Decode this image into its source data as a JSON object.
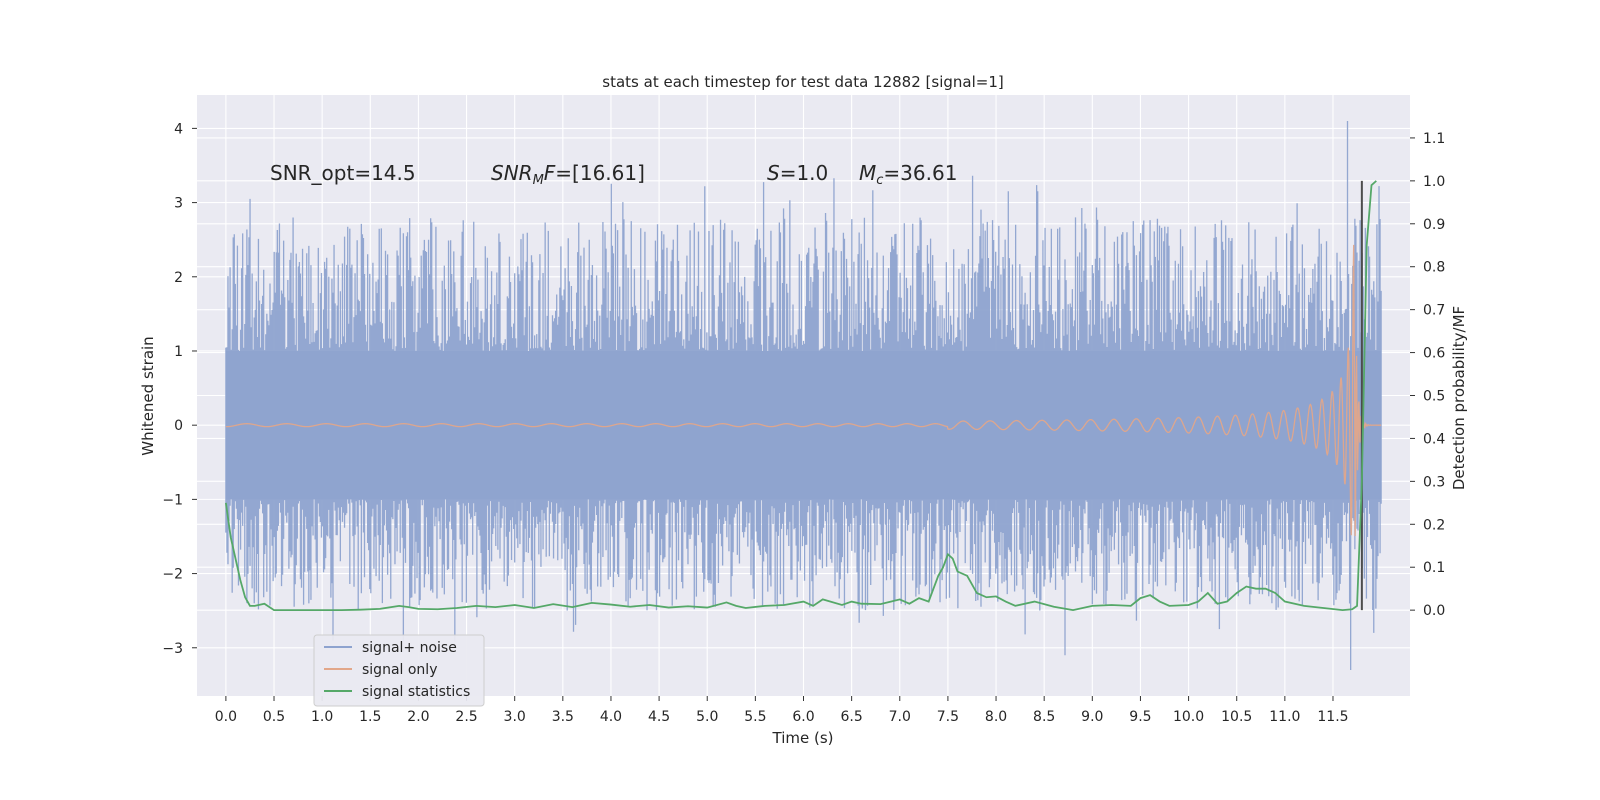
{
  "chart_data": {
    "type": "line",
    "title": "stats at each timestep for test data 12882 [signal=1]",
    "xlabel": "Time (s)",
    "ylabel_left": "Whitened strain",
    "ylabel_right": "Detection probability/MF",
    "x_ticks": [
      "0.0",
      "0.5",
      "1.0",
      "1.5",
      "2.0",
      "2.5",
      "3.0",
      "3.5",
      "4.0",
      "4.5",
      "5.0",
      "5.5",
      "6.0",
      "6.5",
      "7.0",
      "7.5",
      "8.0",
      "8.5",
      "9.0",
      "9.5",
      "10.0",
      "10.5",
      "11.0",
      "11.5"
    ],
    "y_left_ticks": [
      "4",
      "3",
      "2",
      "1",
      "0",
      "−1",
      "−2",
      "−3"
    ],
    "y_right_ticks": [
      "1.1",
      "1.0",
      "0.9",
      "0.8",
      "0.7",
      "0.6",
      "0.5",
      "0.4",
      "0.3",
      "0.2",
      "0.1",
      "0.0"
    ],
    "xlim": [
      -0.3,
      12.3
    ],
    "ylim_left": [
      -3.65,
      4.45
    ],
    "ylim_right": [
      -0.2,
      1.2
    ],
    "grid": true,
    "legend_position": "lower-left",
    "annotations": {
      "snr_opt": "SNR_opt=14.5",
      "snr_mf_var": "SNR",
      "snr_mf_sub": "M",
      "snr_mf_var2": "F",
      "snr_mf_value": "=[16.61]",
      "s_var": "S",
      "s_value": "=1.0",
      "mc_var": "M",
      "mc_sub": "c",
      "mc_value": "=36.61"
    },
    "series": [
      {
        "name": "signal+ noise",
        "color": "#8ea3cf",
        "axis": "left",
        "envelope": {
          "t_start": 0.0,
          "t_end": 12.0,
          "core_band": [
            -1.0,
            1.0
          ],
          "max": 4.1,
          "min": -3.3
        }
      },
      {
        "name": "signal only",
        "color": "#e2a78a",
        "axis": "left",
        "chirp": {
          "t_start": 0.0,
          "t_merger": 11.72,
          "peak_amplitude": 2.6,
          "early_amplitude": 0.02
        }
      },
      {
        "name": "signal statistics",
        "color": "#55a868",
        "axis": "right",
        "x": [
          0.0,
          0.05,
          0.1,
          0.15,
          0.2,
          0.25,
          0.3,
          0.4,
          0.5,
          0.6,
          0.8,
          1.0,
          1.2,
          1.4,
          1.6,
          1.8,
          1.9,
          2.0,
          2.2,
          2.4,
          2.6,
          2.8,
          3.0,
          3.2,
          3.4,
          3.6,
          3.8,
          4.0,
          4.2,
          4.4,
          4.6,
          4.8,
          5.0,
          5.2,
          5.3,
          5.4,
          5.6,
          5.8,
          6.0,
          6.1,
          6.2,
          6.4,
          6.5,
          6.6,
          6.8,
          7.0,
          7.1,
          7.2,
          7.3,
          7.35,
          7.4,
          7.45,
          7.5,
          7.55,
          7.6,
          7.7,
          7.8,
          7.9,
          8.0,
          8.1,
          8.2,
          8.4,
          8.6,
          8.8,
          9.0,
          9.2,
          9.4,
          9.5,
          9.6,
          9.7,
          9.8,
          10.0,
          10.1,
          10.2,
          10.3,
          10.4,
          10.5,
          10.6,
          10.7,
          10.8,
          10.9,
          11.0,
          11.2,
          11.4,
          11.6,
          11.7,
          11.75,
          11.8,
          11.85,
          11.9,
          11.95
        ],
        "y": [
          0.25,
          0.17,
          0.12,
          0.07,
          0.03,
          0.01,
          0.01,
          0.015,
          0.0,
          0.0,
          0.0,
          0.0,
          0.0,
          0.001,
          0.003,
          0.01,
          0.007,
          0.003,
          0.002,
          0.005,
          0.01,
          0.007,
          0.012,
          0.005,
          0.014,
          0.007,
          0.017,
          0.013,
          0.008,
          0.012,
          0.006,
          0.009,
          0.006,
          0.018,
          0.01,
          0.005,
          0.01,
          0.012,
          0.02,
          0.01,
          0.025,
          0.012,
          0.02,
          0.015,
          0.014,
          0.025,
          0.015,
          0.028,
          0.02,
          0.05,
          0.08,
          0.1,
          0.13,
          0.12,
          0.09,
          0.08,
          0.04,
          0.03,
          0.032,
          0.02,
          0.01,
          0.02,
          0.008,
          0.0,
          0.01,
          0.012,
          0.01,
          0.028,
          0.035,
          0.02,
          0.01,
          0.012,
          0.02,
          0.04,
          0.015,
          0.02,
          0.04,
          0.055,
          0.05,
          0.05,
          0.04,
          0.02,
          0.01,
          0.005,
          0.0,
          0.002,
          0.01,
          0.3,
          0.85,
          0.99,
          1.0
        ]
      }
    ],
    "marker_line": {
      "x": 11.8,
      "y_bottom_right": 0.0,
      "y_top_right": 1.0,
      "color": "#4d4d4d"
    }
  }
}
